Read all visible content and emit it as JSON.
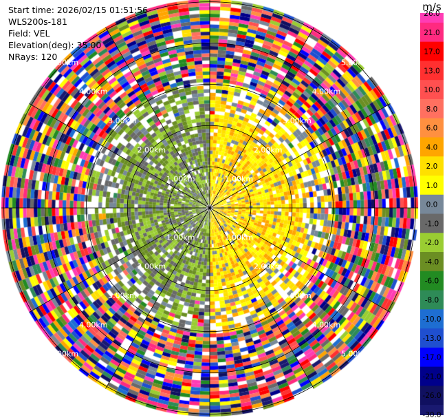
{
  "header": {
    "start_time": "Start time: 2026/02/15 01:51:56",
    "instrument": "WLS200s-181",
    "field": "Field: VEL",
    "elevation": "Elevation(deg): 35.00",
    "nrays": "NRays: 120"
  },
  "colorbar": {
    "unit": "m/s",
    "ticks": [
      "26.0",
      "21.0",
      "17.0",
      "13.0",
      "10.0",
      "8.0",
      "6.0",
      "4.0",
      "2.0",
      "1.0",
      "0.0",
      "-1.0",
      "-2.0",
      "-4.0",
      "-6.0",
      "-8.0",
      "-10.0",
      "-13.0",
      "-17.0",
      "-21.0",
      "-26.0",
      "-30.0"
    ],
    "colors": [
      "#ff3cb4",
      "#ff2a80",
      "#ff0000",
      "#ff3030",
      "#ff5050",
      "#ff7060",
      "#ff9040",
      "#ffa500",
      "#ffe000",
      "#ffff00",
      "#778899",
      "#696969",
      "#9acd32",
      "#6b8e23",
      "#228b22",
      "#2e8b57",
      "#1e6ed2",
      "#1f4fd0",
      "#0000ff",
      "#00008b",
      "#101060",
      "#191970"
    ]
  },
  "chart_data": {
    "type": "heatmap",
    "projection": "polar PPI",
    "field": "VEL",
    "unit": "m/s",
    "nrays": 120,
    "range_rings_km": [
      1,
      2,
      3,
      4,
      5
    ],
    "ring_labels": [
      "1.00km",
      "2.00km",
      "3.00km",
      "4.00km",
      "5.00km"
    ],
    "spokes_deg": [
      0,
      30,
      60,
      90,
      120,
      150,
      180,
      210,
      240,
      270,
      300,
      330
    ],
    "pattern": {
      "inner_approaching_sector_deg": [
        180,
        360
      ],
      "inner_approaching_values": [
        -2,
        -4,
        -1
      ],
      "inner_receding_sector_deg": [
        0,
        180
      ],
      "inner_receding_values": [
        2,
        4,
        1
      ],
      "clear_radius_km": 2.2,
      "noise_beyond_km": 3.0
    }
  }
}
